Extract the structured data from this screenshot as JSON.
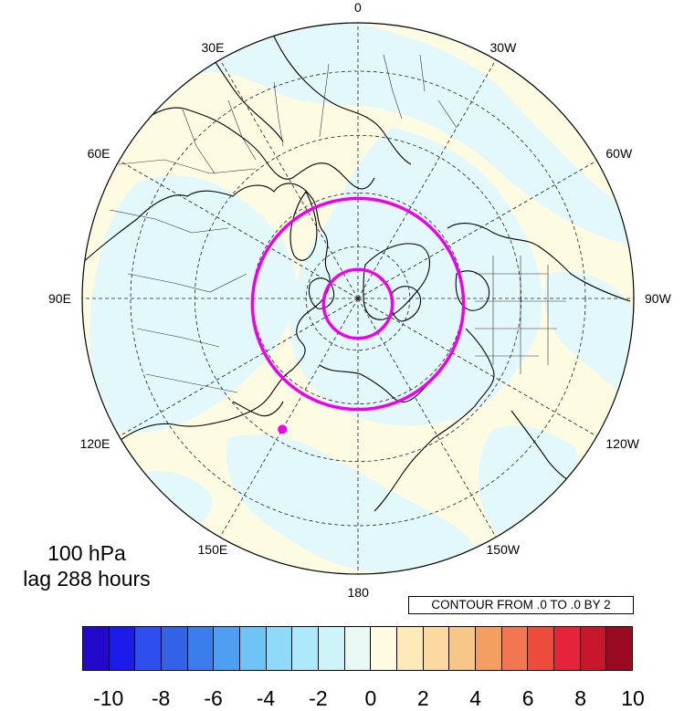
{
  "map": {
    "longitude_labels": [
      {
        "text": "0",
        "lon": 0
      },
      {
        "text": "30W",
        "lon": -30
      },
      {
        "text": "60W",
        "lon": -60
      },
      {
        "text": "90W",
        "lon": -90
      },
      {
        "text": "120W",
        "lon": -120
      },
      {
        "text": "150W",
        "lon": -150
      },
      {
        "text": "180",
        "lon": 180
      },
      {
        "text": "150E",
        "lon": 150
      },
      {
        "text": "120E",
        "lon": 120
      },
      {
        "text": "90E",
        "lon": 90
      },
      {
        "text": "60E",
        "lon": 60
      },
      {
        "text": "30E",
        "lon": 30
      }
    ],
    "latitude_circles_deg": [
      30,
      45,
      60,
      75
    ],
    "projection": "north polar stereographic",
    "magenta_circles_lat": [
      80,
      60
    ],
    "magenta_marker": {
      "lat": 48,
      "lon": 150
    },
    "colors": {
      "land_coast": "#000000",
      "ocean_pale_yellow": "#fefbe3",
      "pale_cyan": "#e3f8fb",
      "magenta": "#ee00ee"
    }
  },
  "labels": {
    "level": "100 hPa",
    "lag": "lag 288 hours",
    "contour_info": "CONTOUR FROM .0 TO .0 BY 2"
  },
  "colorbar": {
    "colors": [
      "#2209cc",
      "#1b1ce9",
      "#2e4ef0",
      "#3263e6",
      "#3b7ded",
      "#4e9ef2",
      "#6fc4f6",
      "#8fdaf8",
      "#aee9fb",
      "#cdf4f8",
      "#eaf9f6",
      "#fefbe0",
      "#fdeab6",
      "#fbd9a0",
      "#f7c788",
      "#f59e62",
      "#f27650",
      "#ee4c3a",
      "#e6233a",
      "#c8162d",
      "#9a0b22"
    ],
    "tick_labels": [
      "-10",
      "-8",
      "-6",
      "-4",
      "-2",
      "0",
      "2",
      "4",
      "6",
      "8",
      "10"
    ]
  }
}
